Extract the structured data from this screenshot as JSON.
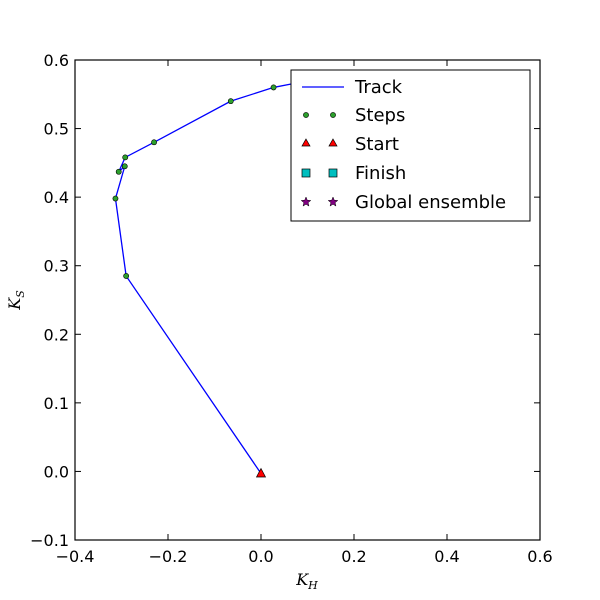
{
  "chart_data": {
    "type": "line",
    "title": "",
    "xlabel": "K_H",
    "ylabel": "K_S",
    "xlabel_main": "K",
    "xlabel_sub": "H",
    "ylabel_main": "K",
    "ylabel_sub": "S",
    "xlim": [
      -0.4,
      0.6
    ],
    "ylim": [
      -0.1,
      0.6
    ],
    "xticks": [
      -0.4,
      -0.2,
      0.0,
      0.2,
      0.4,
      0.6
    ],
    "xtick_labels": [
      "−0.4",
      "−0.2",
      "0.0",
      "0.2",
      "0.4",
      "0.6"
    ],
    "yticks": [
      -0.1,
      0.0,
      0.1,
      0.2,
      0.3,
      0.4,
      0.5,
      0.6
    ],
    "ytick_labels": [
      "−0.1",
      "0.0",
      "0.1",
      "0.2",
      "0.3",
      "0.4",
      "0.5",
      "0.6"
    ],
    "grid": false,
    "legend_position": "top-right",
    "colors": {
      "track": "#0000ff",
      "steps": "#2ca02c",
      "start": "#ff0000",
      "finish": "#00bfbf",
      "global": "#800080"
    },
    "series": [
      {
        "name": "Track",
        "kind": "line",
        "x": [
          0.0,
          -0.29,
          -0.313,
          -0.293,
          -0.306,
          -0.292,
          -0.23,
          -0.065,
          0.027,
          0.065
        ],
        "y": [
          -0.003,
          0.285,
          0.398,
          0.445,
          0.437,
          0.458,
          0.48,
          0.54,
          0.56,
          0.565
        ]
      },
      {
        "name": "Steps",
        "kind": "points",
        "x": [
          -0.29,
          -0.313,
          -0.293,
          -0.306,
          -0.292,
          -0.23,
          -0.065,
          0.027
        ],
        "y": [
          0.285,
          0.398,
          0.445,
          0.437,
          0.458,
          0.48,
          0.54,
          0.56
        ]
      },
      {
        "name": "Start",
        "kind": "triangle",
        "x": [
          0.0
        ],
        "y": [
          -0.003
        ]
      },
      {
        "name": "Finish",
        "kind": "square",
        "x": [],
        "y": []
      },
      {
        "name": "Global ensemble",
        "kind": "star",
        "x": [],
        "y": []
      }
    ]
  }
}
